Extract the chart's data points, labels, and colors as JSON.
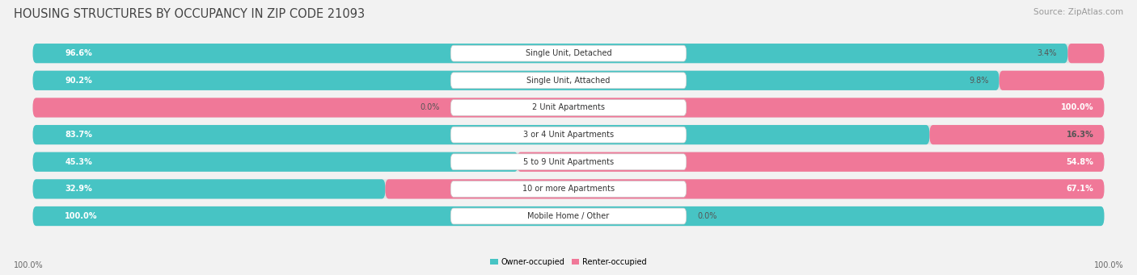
{
  "title": "HOUSING STRUCTURES BY OCCUPANCY IN ZIP CODE 21093",
  "source": "Source: ZipAtlas.com",
  "categories": [
    "Single Unit, Detached",
    "Single Unit, Attached",
    "2 Unit Apartments",
    "3 or 4 Unit Apartments",
    "5 to 9 Unit Apartments",
    "10 or more Apartments",
    "Mobile Home / Other"
  ],
  "owner_pct": [
    96.6,
    90.2,
    0.0,
    83.7,
    45.3,
    32.9,
    100.0
  ],
  "renter_pct": [
    3.4,
    9.8,
    100.0,
    16.3,
    54.8,
    67.1,
    0.0
  ],
  "owner_color": "#47C4C4",
  "renter_color": "#F07898",
  "bg_color": "#F2F2F2",
  "bar_bg_color": "#E2E2E2",
  "title_fontsize": 10.5,
  "source_fontsize": 7.5,
  "bar_label_fontsize": 7.0,
  "category_fontsize": 7.0,
  "axis_label_fontsize": 7.0,
  "bar_height": 0.72,
  "legend_labels": [
    "Owner-occupied",
    "Renter-occupied"
  ],
  "total_width": 100
}
